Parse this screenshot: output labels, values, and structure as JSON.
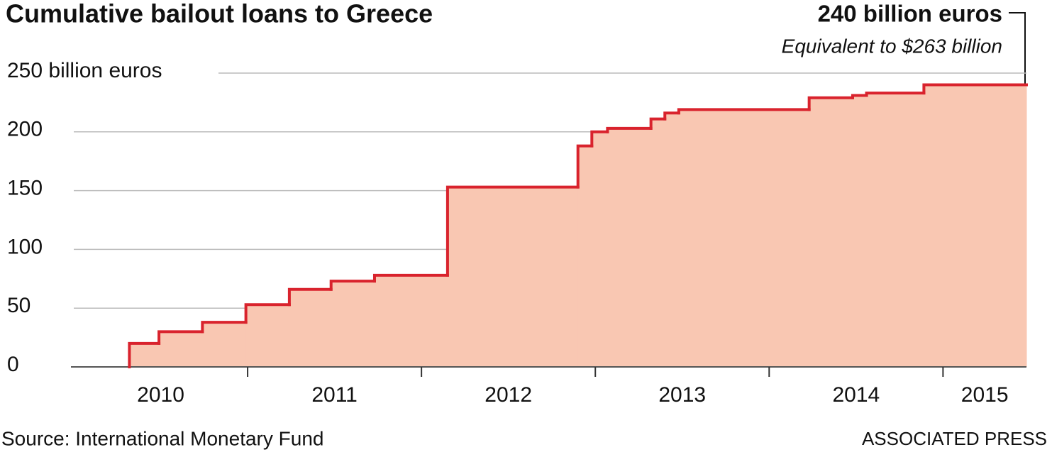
{
  "chart_data": {
    "type": "step-area",
    "title": "Cumulative bailout loans to Greece",
    "annotation": "240 billion euros",
    "annotation_subtitle": "Equivalent to $263 billion",
    "source": "Source: International Monetary Fund",
    "credit": "ASSOCIATED PRESS",
    "x": [
      2010.32,
      2010.49,
      2010.74,
      2010.99,
      2011.24,
      2011.48,
      2011.73,
      2012.15,
      2012.9,
      2012.98,
      2013.07,
      2013.32,
      2013.4,
      2013.48,
      2014.23,
      2014.48,
      2014.56,
      2014.89
    ],
    "values": [
      20,
      30,
      38,
      53,
      66,
      73,
      78,
      153,
      188,
      200,
      203,
      211,
      216,
      219,
      229,
      231,
      233,
      240
    ],
    "color": "#d9232d",
    "fill": "#f9c7b2",
    "xlim": [
      2010,
      2015.48
    ],
    "xticks": [
      {
        "value": 2010,
        "label": "2010"
      },
      {
        "value": 2011,
        "label": "2011"
      },
      {
        "value": 2012,
        "label": "2012"
      },
      {
        "value": 2013,
        "label": "2013"
      },
      {
        "value": 2014,
        "label": "2014"
      },
      {
        "value": 2015,
        "label": "2015"
      }
    ],
    "ylim": [
      0,
      250
    ],
    "yticks": [
      0,
      50,
      100,
      150,
      200,
      {
        "value": 250,
        "label": "250 billion euros"
      }
    ],
    "grid": true
  }
}
